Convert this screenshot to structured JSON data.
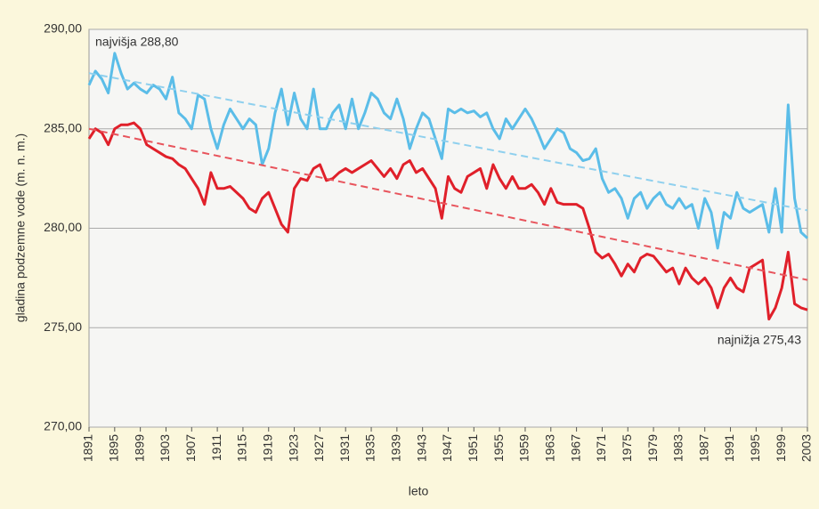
{
  "chart_data": {
    "type": "line",
    "ylabel": "gladina podzemne vode (m. n. m.)",
    "xlabel": "leto",
    "annotations": [
      "najvišja 288,80",
      "najnižja 275,43"
    ],
    "x": [
      1891,
      1892,
      1893,
      1894,
      1895,
      1896,
      1897,
      1898,
      1899,
      1900,
      1901,
      1902,
      1903,
      1904,
      1905,
      1906,
      1907,
      1908,
      1909,
      1910,
      1911,
      1912,
      1913,
      1914,
      1915,
      1916,
      1917,
      1918,
      1919,
      1920,
      1921,
      1922,
      1923,
      1924,
      1925,
      1926,
      1927,
      1928,
      1929,
      1930,
      1931,
      1932,
      1933,
      1934,
      1935,
      1936,
      1937,
      1938,
      1939,
      1940,
      1941,
      1942,
      1943,
      1944,
      1945,
      1946,
      1947,
      1948,
      1949,
      1950,
      1951,
      1952,
      1953,
      1954,
      1955,
      1956,
      1957,
      1958,
      1959,
      1960,
      1961,
      1962,
      1963,
      1964,
      1965,
      1966,
      1967,
      1968,
      1969,
      1970,
      1971,
      1972,
      1973,
      1974,
      1975,
      1976,
      1977,
      1978,
      1979,
      1980,
      1981,
      1982,
      1983,
      1984,
      1985,
      1986,
      1987,
      1988,
      1989,
      1990,
      1991,
      1992,
      1993,
      1994,
      1995,
      1996,
      1997,
      1998,
      1999,
      2000,
      2001,
      2002,
      2003
    ],
    "series": [
      {
        "color": "#5bbde8",
        "values": [
          287.2,
          287.9,
          287.5,
          286.8,
          288.8,
          287.8,
          287.0,
          287.3,
          287.0,
          286.8,
          287.2,
          287.0,
          286.5,
          287.6,
          285.8,
          285.5,
          285.0,
          286.7,
          286.5,
          285.0,
          284.0,
          285.2,
          286.0,
          285.5,
          285.0,
          285.5,
          285.2,
          283.2,
          284.0,
          285.8,
          287.0,
          285.2,
          286.8,
          285.5,
          285.0,
          287.0,
          285.0,
          285.0,
          285.8,
          286.2,
          285.0,
          286.5,
          285.0,
          285.8,
          286.8,
          286.5,
          285.8,
          285.5,
          286.5,
          285.5,
          284.0,
          285.0,
          285.8,
          285.5,
          284.5,
          283.5,
          286.0,
          285.8,
          286.0,
          285.8,
          285.9,
          285.6,
          285.8,
          285.0,
          284.5,
          285.5,
          285.0,
          285.5,
          286.0,
          285.5,
          284.8,
          284.0,
          284.5,
          285.0,
          284.8,
          284.0,
          283.8,
          283.4,
          283.5,
          284.0,
          282.5,
          281.8,
          282.0,
          281.5,
          280.5,
          281.5,
          281.8,
          281.0,
          281.5,
          281.8,
          281.2,
          281.0,
          281.5,
          281.0,
          281.2,
          280.0,
          281.5,
          280.8,
          279.0,
          280.8,
          280.5,
          281.8,
          281.0,
          280.8,
          281.0,
          281.2,
          279.8,
          282.0,
          279.8,
          286.2,
          281.5,
          279.8,
          279.5
        ]
      },
      {
        "color": "#e0202a",
        "values": [
          284.5,
          285.0,
          284.8,
          284.2,
          285.0,
          285.2,
          285.2,
          285.3,
          285.0,
          284.2,
          284.0,
          283.8,
          283.6,
          283.5,
          283.2,
          283.0,
          282.5,
          282.0,
          281.2,
          282.8,
          282.0,
          282.0,
          282.1,
          281.8,
          281.5,
          281.0,
          280.8,
          281.5,
          281.8,
          281.0,
          280.2,
          279.8,
          282.0,
          282.5,
          282.4,
          283.0,
          283.2,
          282.4,
          282.5,
          282.8,
          283.0,
          282.8,
          283.0,
          283.2,
          283.4,
          283.0,
          282.6,
          283.0,
          282.5,
          283.2,
          283.4,
          282.8,
          283.0,
          282.5,
          282.0,
          280.5,
          282.6,
          282.0,
          281.8,
          282.6,
          282.8,
          283.0,
          282.0,
          283.2,
          282.5,
          282.0,
          282.6,
          282.0,
          282.0,
          282.2,
          281.8,
          281.2,
          282.0,
          281.3,
          281.2,
          281.2,
          281.2,
          281.0,
          280.0,
          278.8,
          278.5,
          278.7,
          278.2,
          277.6,
          278.2,
          277.8,
          278.5,
          278.7,
          278.6,
          278.2,
          277.8,
          278.0,
          277.2,
          278.0,
          277.5,
          277.2,
          277.5,
          277.0,
          276.0,
          277.0,
          277.5,
          277.0,
          276.8,
          278.0,
          278.2,
          278.4,
          275.43,
          276.0,
          277.0,
          278.8,
          276.2,
          276.0,
          275.9
        ]
      },
      {
        "color": "#8fd0ee",
        "dashed": true,
        "x": [
          1891,
          2003
        ],
        "values": [
          287.8,
          280.9
        ]
      },
      {
        "color": "#e8545c",
        "dashed": true,
        "x": [
          1891,
          2003
        ],
        "values": [
          285.0,
          277.4
        ]
      }
    ],
    "xlim": [
      1891,
      2003
    ],
    "xticks": [
      1891,
      1895,
      1899,
      1903,
      1907,
      1911,
      1915,
      1919,
      1923,
      1927,
      1931,
      1935,
      1939,
      1943,
      1947,
      1951,
      1955,
      1959,
      1963,
      1967,
      1971,
      1975,
      1979,
      1983,
      1987,
      1991,
      1995,
      1999,
      2003
    ],
    "ylim": [
      270,
      290
    ],
    "yticks": [
      {
        "value": 270,
        "label": "270,00"
      },
      {
        "value": 275,
        "label": "275,00"
      },
      {
        "value": 280,
        "label": "280,00"
      },
      {
        "value": 285,
        "label": "285,00"
      },
      {
        "value": 290,
        "label": "290,00"
      }
    ],
    "grid": true
  }
}
